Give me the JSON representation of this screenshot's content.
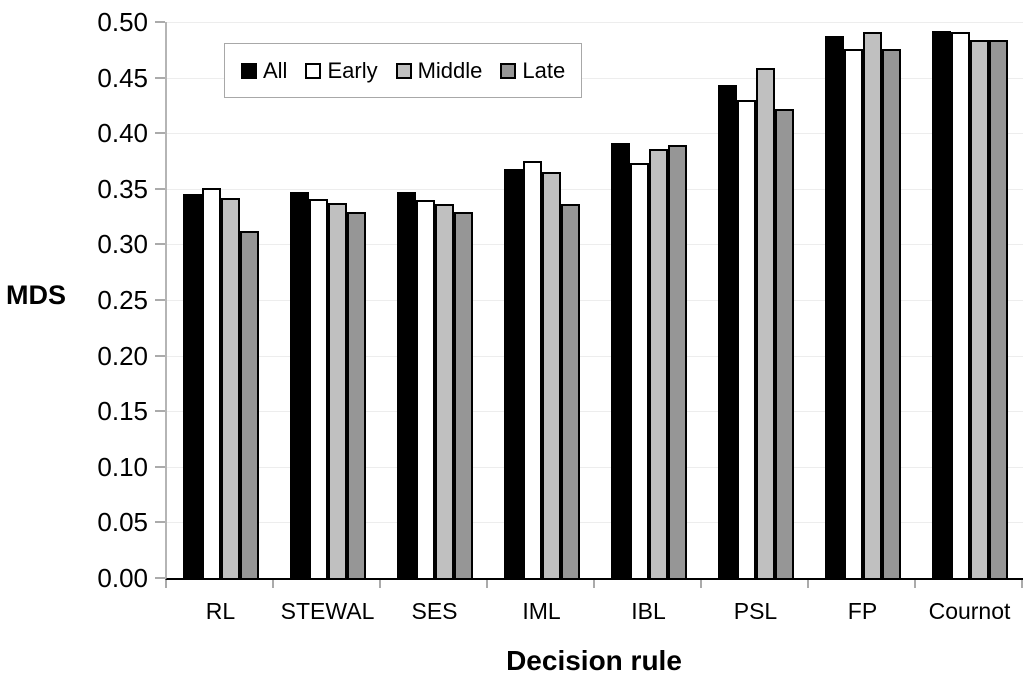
{
  "chart_data": {
    "type": "bar",
    "title": "",
    "xlabel": "Decision rule",
    "ylabel": "MDS",
    "ylim": [
      0.0,
      0.5
    ],
    "ytick_step": 0.05,
    "yticks": [
      "0.50",
      "0.45",
      "0.40",
      "0.35",
      "0.30",
      "0.25",
      "0.20",
      "0.15",
      "0.10",
      "0.05",
      "0.00"
    ],
    "grid": true,
    "legend_position": "top-inside-left",
    "categories": [
      "RL",
      "STEWAL",
      "SES",
      "IML",
      "IBL",
      "PSL",
      "FP",
      "Cournot"
    ],
    "series": [
      {
        "name": "All",
        "color": "#000000",
        "values": [
          0.345,
          0.347,
          0.347,
          0.368,
          0.391,
          0.443,
          0.487,
          0.492
        ]
      },
      {
        "name": "Early",
        "color": "#ffffff",
        "values": [
          0.351,
          0.341,
          0.34,
          0.375,
          0.373,
          0.43,
          0.476,
          0.491
        ]
      },
      {
        "name": "Middle",
        "color": "#c0c0c0",
        "values": [
          0.342,
          0.337,
          0.336,
          0.365,
          0.386,
          0.459,
          0.491,
          0.484
        ]
      },
      {
        "name": "Late",
        "color": "#969696",
        "values": [
          0.312,
          0.329,
          0.329,
          0.336,
          0.389,
          0.422,
          0.476,
          0.484
        ]
      }
    ],
    "colors": {
      "background": "#ffffff",
      "gridline": "#ededed",
      "x_axis": "#000000",
      "y_axis": "#b5b5b5",
      "tick": "#ababab",
      "bar_border": "#000000",
      "legend_border": "#a8a8a8"
    }
  }
}
